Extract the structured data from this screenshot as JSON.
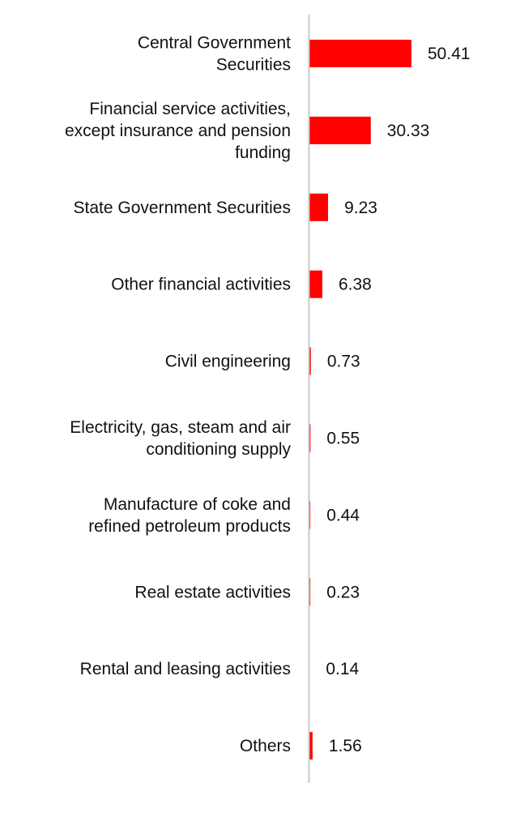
{
  "chart_data": {
    "type": "bar",
    "orientation": "horizontal",
    "title": "",
    "xlabel": "",
    "ylabel": "",
    "categories": [
      "Central Government Securities",
      "Financial service activities, except insurance and pension funding",
      "State Government Securities",
      "Other financial activities",
      "Civil engineering",
      "Electricity, gas, steam and air conditioning supply",
      "Manufacture of coke and refined petroleum products",
      "Real estate activities",
      "Rental and leasing activities",
      "Others"
    ],
    "values": [
      50.41,
      30.33,
      9.23,
      6.38,
      0.73,
      0.55,
      0.44,
      0.23,
      0.14,
      1.56
    ],
    "data_labels": [
      "50.41",
      "30.33",
      "9.23",
      "6.38",
      "0.73",
      "0.55",
      "0.44",
      "0.23",
      "0.14",
      "1.56"
    ],
    "xlim": [
      0,
      50.41
    ],
    "grid": false,
    "legend": "none",
    "bar_color": "#ff0000",
    "axis_color": "#c8c8c8",
    "label_color": "#111111"
  }
}
